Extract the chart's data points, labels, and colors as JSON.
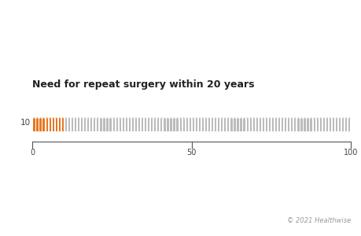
{
  "title": "Need for repeat surgery within 20 years",
  "total_figures": 100,
  "highlighted_count": 10,
  "highlight_color": "#E87722",
  "base_color": "#BBBBBB",
  "row_label": "10",
  "axis_ticks": [
    0,
    50,
    100
  ],
  "background_color": "#FFFFFF",
  "title_color": "#222222",
  "label_color": "#444444",
  "copyright_text": "© 2021 Healthwise",
  "figure_width": 4.6,
  "figure_height": 3.0,
  "dpi": 100
}
